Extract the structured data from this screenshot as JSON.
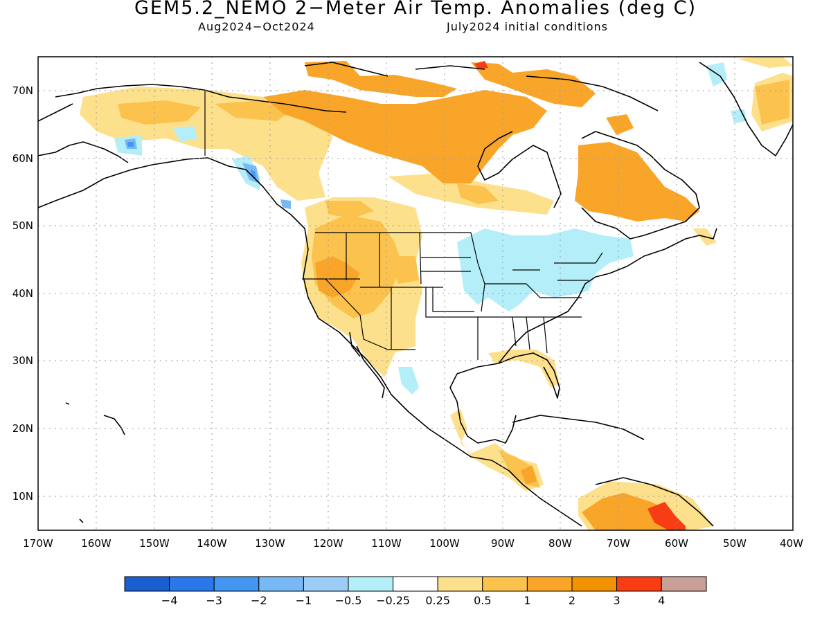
{
  "title": "GEM5.2_NEMO 2−Meter Air Temp. Anomalies (deg C)",
  "subtitle_left": "Aug2024−Oct2024",
  "subtitle_right": "July2024 initial conditions",
  "lat_labels": [
    "70N",
    "60N",
    "50N",
    "40N",
    "30N",
    "20N",
    "10N"
  ],
  "lon_labels": [
    "170W",
    "160W",
    "150W",
    "140W",
    "130W",
    "120W",
    "110W",
    "100W",
    "90W",
    "80W",
    "70W",
    "60W",
    "50W",
    "40W"
  ],
  "colorbar": {
    "colors": [
      "#1a5fcf",
      "#2a78e8",
      "#4296f0",
      "#78b8f5",
      "#9ccdf7",
      "#b4eef8",
      "#ffffff",
      "#fde08c",
      "#fbc24e",
      "#f9a52a",
      "#f39200",
      "#f83c14",
      "#c8a096",
      "#7b5143"
    ],
    "labels": [
      "−4",
      "−3",
      "−2",
      "−1",
      "−0.5",
      "−0.25",
      "0.25",
      "0.5",
      "1",
      "2",
      "3",
      "4"
    ]
  },
  "palette": {
    "yellow": "#fde08c",
    "light_orange": "#fbc24e",
    "orange": "#f9a52a",
    "dark_orange": "#f39200",
    "red": "#f83c14",
    "light_blue": "#b4eef8",
    "blue": "#78b8f5",
    "deep_blue": "#4296f0"
  }
}
